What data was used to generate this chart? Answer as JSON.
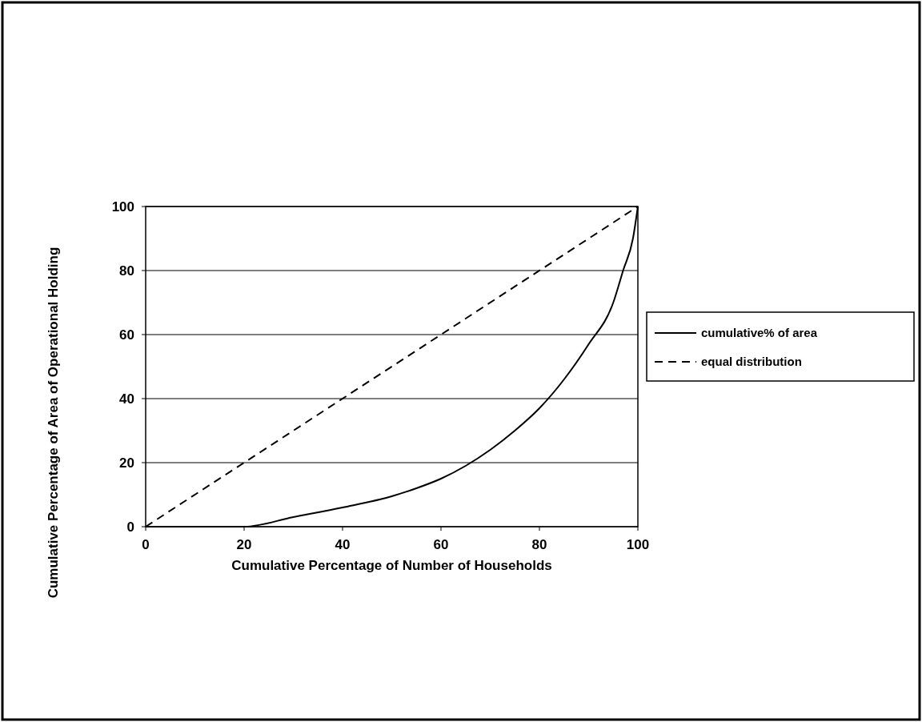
{
  "chart_data": {
    "type": "line",
    "xlabel": "Cumulative Percentage of Number of Households",
    "ylabel": "Cumulative Percentage  of Area of Operational Holding",
    "xlim": [
      0,
      100
    ],
    "ylim": [
      0,
      100
    ],
    "xticks": [
      0,
      20,
      40,
      60,
      80,
      100
    ],
    "yticks": [
      0,
      20,
      40,
      60,
      80,
      100
    ],
    "grid": "y",
    "legend": "right",
    "series": [
      {
        "name": "cumulative% of area",
        "color": "#000000",
        "line_style": "solid",
        "x": [
          0,
          10,
          20,
          30,
          40,
          50,
          55,
          60,
          65,
          70,
          75,
          80,
          85,
          90,
          95,
          97,
          99,
          100
        ],
        "values": [
          0,
          0,
          0,
          3,
          6,
          9.5,
          12,
          15,
          19,
          24,
          30,
          37,
          46,
          57,
          70,
          80,
          90,
          100
        ]
      },
      {
        "name": "equal distribution",
        "color": "#000000",
        "line_style": "dashed",
        "x": [
          0,
          100
        ],
        "values": [
          0,
          100
        ]
      }
    ]
  }
}
